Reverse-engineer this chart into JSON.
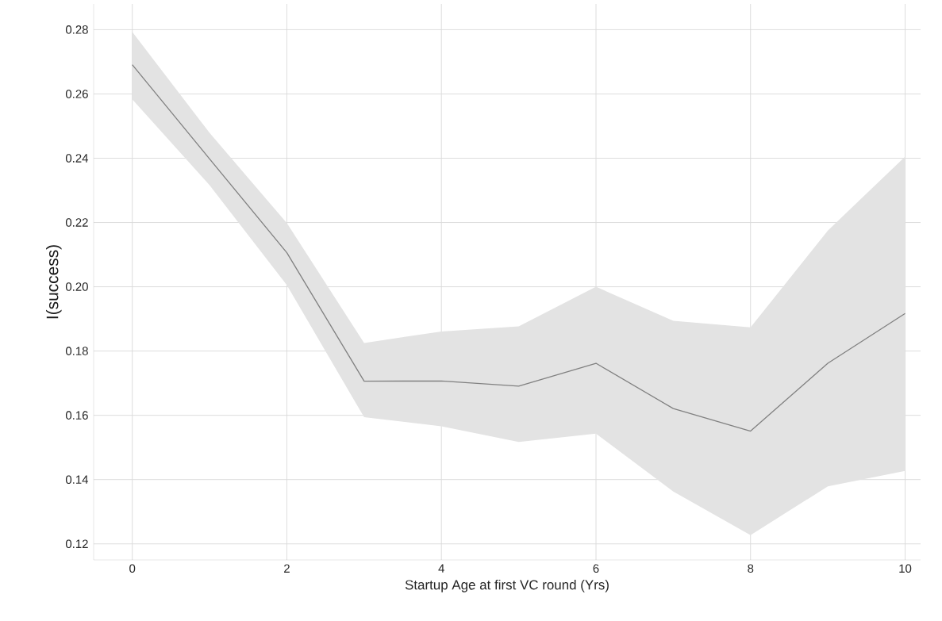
{
  "chart_data": {
    "type": "line",
    "xlabel": "Startup Age at first VC round (Yrs)",
    "ylabel": "I(success)",
    "x": [
      0,
      1,
      2,
      3,
      4,
      5,
      6,
      7,
      8,
      9,
      10
    ],
    "series": [
      {
        "color": "#808080",
        "values": [
          0.2691,
          0.2398,
          0.2106,
          0.1706,
          0.1707,
          0.1691,
          0.1762,
          0.1621,
          0.1551,
          0.1762,
          0.1917
        ],
        "lower": [
          0.2583,
          0.2316,
          0.2005,
          0.1594,
          0.1566,
          0.1517,
          0.1543,
          0.1363,
          0.1227,
          0.1379,
          0.1427
        ],
        "upper": [
          0.2793,
          0.2479,
          0.2198,
          0.1825,
          0.1861,
          0.1877,
          0.2,
          0.1894,
          0.1874,
          0.2175,
          0.2405
        ]
      }
    ],
    "xlim": [
      -0.5,
      10.2
    ],
    "ylim": [
      0.115,
      0.288
    ],
    "xticks": [
      0,
      2,
      4,
      6,
      8,
      10
    ],
    "yticks": [
      {
        "value": 0.12,
        "label": "0.12"
      },
      {
        "value": 0.14,
        "label": "0.14"
      },
      {
        "value": 0.16,
        "label": "0.16"
      },
      {
        "value": 0.18,
        "label": "0.18"
      },
      {
        "value": 0.2,
        "label": "0.20"
      },
      {
        "value": 0.22,
        "label": "0.22"
      },
      {
        "value": 0.24,
        "label": "0.24"
      },
      {
        "value": 0.26,
        "label": "0.26"
      },
      {
        "value": 0.28,
        "label": "0.28"
      }
    ],
    "grid": true,
    "marker": "none",
    "line_style": "solid"
  }
}
